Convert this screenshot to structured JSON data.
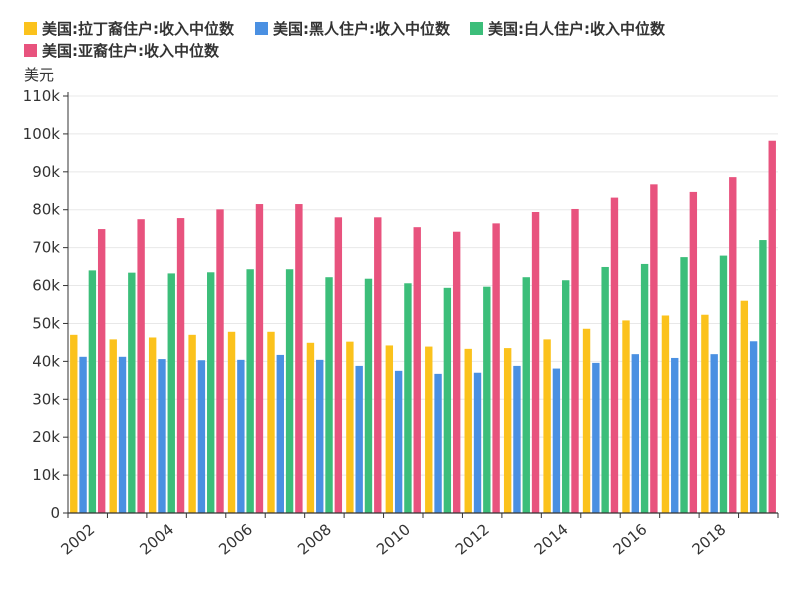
{
  "chart_data": {
    "type": "bar",
    "unit_label": "美元",
    "x": [
      2002,
      2003,
      2004,
      2005,
      2006,
      2007,
      2008,
      2009,
      2010,
      2011,
      2012,
      2013,
      2014,
      2015,
      2016,
      2017,
      2018,
      2019
    ],
    "x_tick_labels": [
      "2002",
      "2004",
      "2006",
      "2008",
      "2010",
      "2012",
      "2014",
      "2016",
      "2018"
    ],
    "y_ticks": [
      "0",
      "10k",
      "20k",
      "30k",
      "40k",
      "50k",
      "60k",
      "70k",
      "80k",
      "90k",
      "100k",
      "110k"
    ],
    "ylim": [
      0,
      110000
    ],
    "grid": true,
    "legend_position": "top-left",
    "series": [
      {
        "name": "美国:拉丁裔住户:收入中位数",
        "color": "#FBC21C",
        "values": [
          47000,
          45800,
          46300,
          47000,
          47800,
          47800,
          44900,
          45200,
          44200,
          43900,
          43300,
          43500,
          45800,
          48600,
          50800,
          52100,
          52300,
          56000
        ]
      },
      {
        "name": "美国:黑人住户:收入中位数",
        "color": "#4A90E2",
        "values": [
          41200,
          41200,
          40600,
          40300,
          40400,
          41700,
          40400,
          38800,
          37500,
          36700,
          37000,
          38800,
          38100,
          39600,
          41900,
          40900,
          41900,
          45300
        ]
      },
      {
        "name": "美国:白人住户:收入中位数",
        "color": "#3CBE7A",
        "values": [
          64000,
          63400,
          63200,
          63500,
          64300,
          64300,
          62200,
          61800,
          60600,
          59400,
          59700,
          62200,
          61400,
          64900,
          65700,
          67500,
          67900,
          72000
        ]
      },
      {
        "name": "美国:亚裔住户:收入中位数",
        "color": "#E8537E",
        "values": [
          74900,
          77500,
          77800,
          80100,
          81500,
          81500,
          78000,
          78000,
          75400,
          74200,
          76400,
          79400,
          80200,
          83200,
          86700,
          84700,
          88600,
          98200
        ]
      }
    ]
  }
}
